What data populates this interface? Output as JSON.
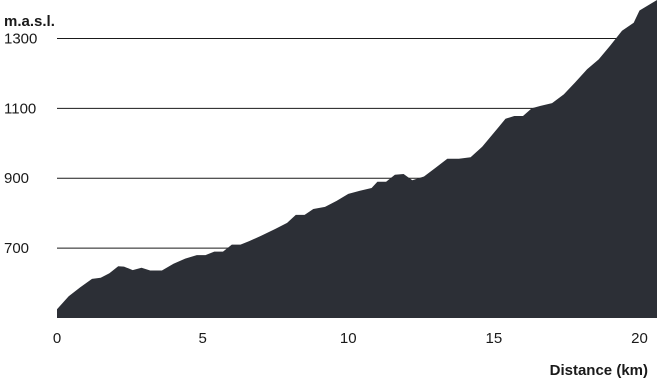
{
  "chart_data": {
    "type": "area",
    "title": "",
    "xlabel": "Distance (km)",
    "ylabel": "m.a.s.l.",
    "xlim": [
      0,
      20.6
    ],
    "ylim": [
      500,
      1410
    ],
    "x_ticks": [
      0,
      5,
      10,
      15,
      20
    ],
    "y_ticks": [
      700,
      900,
      1100,
      1300
    ],
    "grid": "horizontal",
    "fill_color": "#2c2f36",
    "series": [
      {
        "x": [
          0,
          0.4,
          0.8,
          1.2,
          1.5,
          1.8,
          2.1,
          2.3,
          2.6,
          2.9,
          3.2,
          3.6,
          4.0,
          4.4,
          4.8,
          5.1,
          5.4,
          5.7,
          6.0,
          6.3,
          6.6,
          7.0,
          7.5,
          7.9,
          8.2,
          8.5,
          8.8,
          9.2,
          9.6,
          10.0,
          10.4,
          10.8,
          11.0,
          11.3,
          11.6,
          11.9,
          12.2,
          12.6,
          13.0,
          13.4,
          13.8,
          14.2,
          14.6,
          15.0,
          15.4,
          15.7,
          16.0,
          16.3,
          16.6,
          17.0,
          17.4,
          17.8,
          18.2,
          18.6,
          19.0,
          19.4,
          19.8,
          20.0,
          20.6
        ],
        "y": [
          525,
          562,
          588,
          612,
          615,
          628,
          648,
          647,
          637,
          644,
          636,
          636,
          655,
          670,
          680,
          680,
          690,
          690,
          710,
          710,
          720,
          735,
          755,
          772,
          795,
          795,
          812,
          818,
          835,
          855,
          864,
          872,
          890,
          890,
          910,
          912,
          894,
          905,
          930,
          956,
          956,
          960,
          990,
          1030,
          1070,
          1078,
          1078,
          1100,
          1107,
          1115,
          1140,
          1175,
          1212,
          1240,
          1280,
          1322,
          1345,
          1380,
          1410
        ]
      }
    ]
  }
}
